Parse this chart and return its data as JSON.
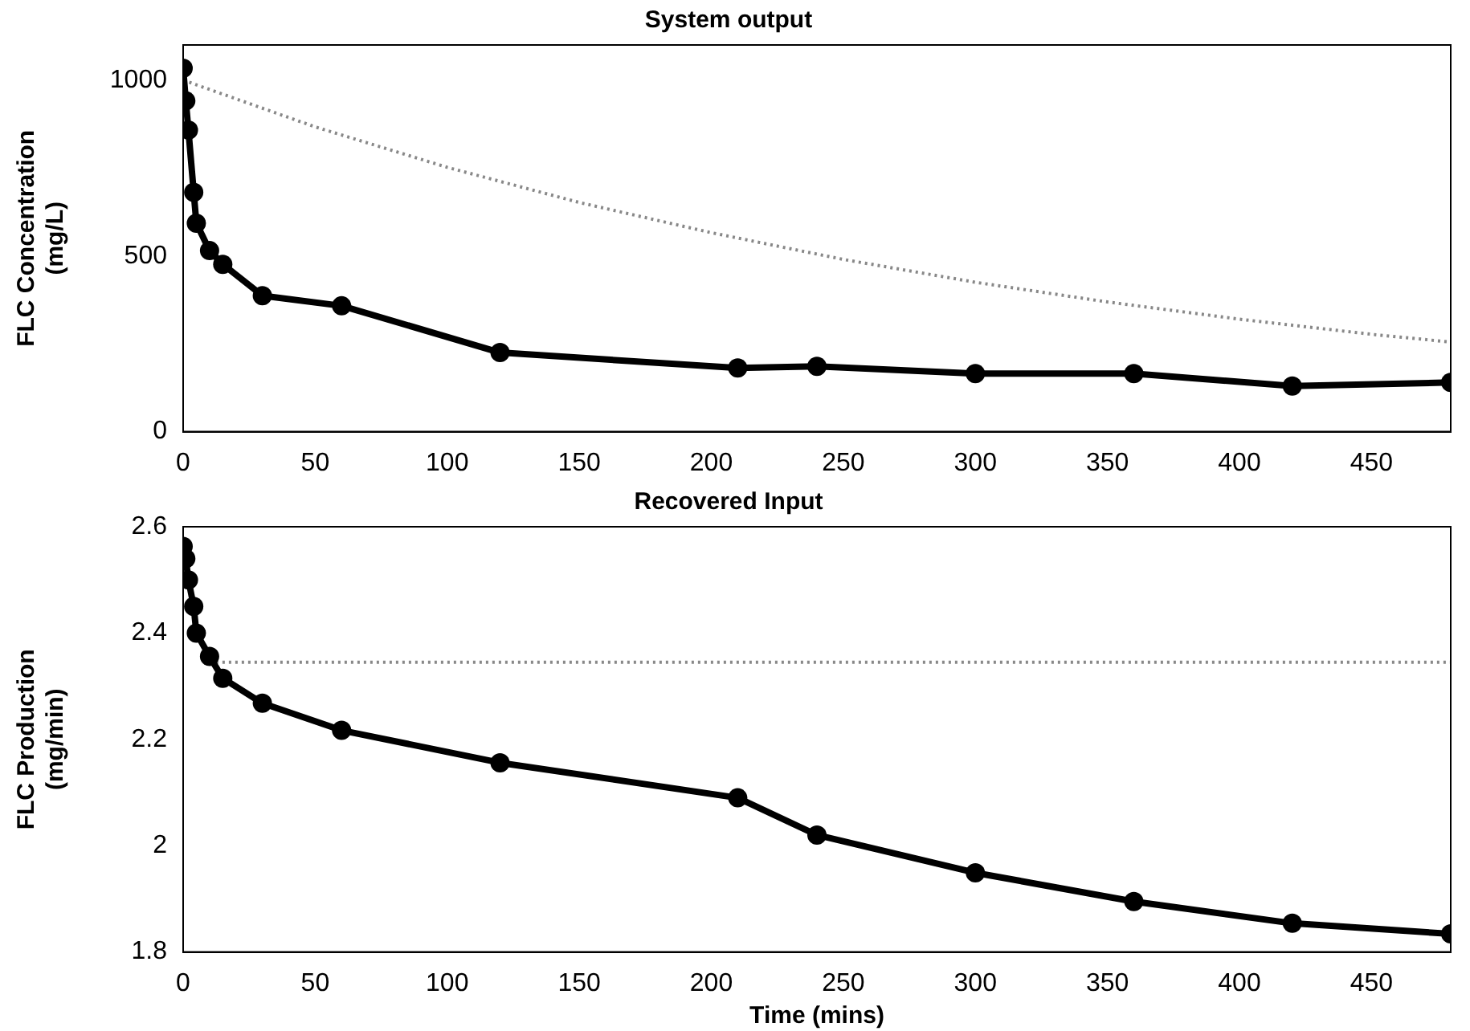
{
  "chart_data": [
    {
      "type": "line",
      "title": "System output",
      "ylabel": "FLC Concentration\n(mg/L)",
      "xlim": [
        0,
        480
      ],
      "xticks": [
        0,
        50,
        100,
        150,
        200,
        250,
        300,
        350,
        400,
        450
      ],
      "ylim": [
        0,
        1100
      ],
      "yticks": [
        0,
        500,
        1000
      ],
      "grid": false,
      "legend": false,
      "series": [
        {
          "color": "#000000",
          "marker": "circle",
          "line_style": "solid",
          "x": [
            0,
            1,
            2,
            4,
            5,
            10,
            15,
            30,
            60,
            120,
            210,
            240,
            300,
            360,
            420,
            480
          ],
          "values": [
            1034,
            941,
            858,
            681,
            593,
            515,
            476,
            387,
            358,
            225,
            181,
            186,
            165,
            165,
            130,
            140
          ]
        },
        {
          "color": "#888888",
          "marker": "none",
          "line_style": "dotted",
          "x": [
            0,
            50,
            100,
            150,
            200,
            250,
            300,
            350,
            400,
            450,
            480
          ],
          "values": [
            1000,
            867,
            752,
            652,
            566,
            490,
            425,
            369,
            320,
            277,
            255
          ]
        }
      ]
    },
    {
      "type": "line",
      "title": "Recovered Input",
      "xlabel": "Time (mins)",
      "ylabel": "FLC Production\n(mg/min)",
      "xlim": [
        0,
        480
      ],
      "xticks": [
        0,
        50,
        100,
        150,
        200,
        250,
        300,
        350,
        400,
        450
      ],
      "ylim": [
        1.8,
        2.6
      ],
      "yticks": [
        {
          "value": 1.8,
          "label": "1.8"
        },
        2.2,
        2.4,
        {
          "value": 2.6,
          "label": "2.6"
        },
        2
      ],
      "grid": false,
      "legend": false,
      "series": [
        {
          "color": "#000000",
          "marker": "circle",
          "line_style": "solid",
          "x": [
            0,
            1,
            2,
            4,
            5,
            10,
            15,
            30,
            60,
            120,
            210,
            240,
            300,
            360,
            420,
            480
          ],
          "values": [
            2.563,
            2.54,
            2.5,
            2.45,
            2.4,
            2.356,
            2.315,
            2.268,
            2.217,
            2.156,
            2.09,
            2.02,
            1.949,
            1.895,
            1.854,
            1.834
          ]
        },
        {
          "color": "#888888",
          "marker": "none",
          "line_style": "dotted",
          "x": [
            10,
            480
          ],
          "values": [
            2.345,
            2.345
          ]
        }
      ]
    }
  ]
}
